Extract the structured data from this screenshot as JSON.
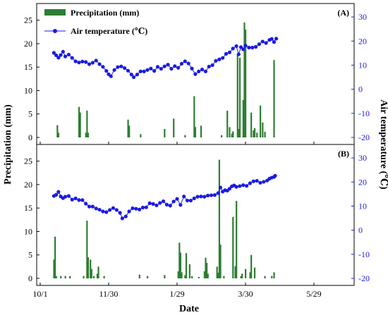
{
  "chart_data": [
    {
      "panel_label": "(A)",
      "type": "bar",
      "x_ticks": [
        "10/1",
        "11/30",
        "1/29",
        "3/30",
        "5/29"
      ],
      "xlabel": "Date",
      "ylabel": "Precipitation (mm)",
      "y2label": "Air temperature (℃)",
      "ylim": [
        0,
        26
      ],
      "y_ticks": [
        0,
        5,
        10,
        15,
        20,
        25
      ],
      "y2lim": [
        -20,
        35
      ],
      "y2_ticks": [
        -20,
        -10,
        0,
        10,
        20,
        30
      ],
      "legend": [
        "Precipitation (mm)",
        "Air temperature (℃)"
      ],
      "legend_position": "top-left",
      "colors": {
        "precipitation": "#2e7d32",
        "temperature": "#1a1ae6",
        "right_axis": "#1a1ae6"
      },
      "precipitation_bars": [
        [
          15,
          2.6
        ],
        [
          16,
          1.0
        ],
        [
          34,
          6.5
        ],
        [
          35,
          5.3
        ],
        [
          40,
          1.0
        ],
        [
          41,
          5.7
        ],
        [
          42,
          1.0
        ],
        [
          77,
          3.8
        ],
        [
          78,
          2.5
        ],
        [
          88,
          0.7
        ],
        [
          109,
          1.8
        ],
        [
          117,
          4.0
        ],
        [
          127,
          0.5
        ],
        [
          135,
          8.8
        ],
        [
          136,
          2.2
        ],
        [
          141,
          2.5
        ],
        [
          159,
          0.5
        ],
        [
          164,
          5.7
        ],
        [
          166,
          2.2
        ],
        [
          168,
          0.8
        ],
        [
          169,
          1.3
        ],
        [
          173,
          17.8
        ],
        [
          174,
          1.8
        ],
        [
          175,
          17.0
        ],
        [
          178,
          8.0
        ],
        [
          179,
          24.5
        ],
        [
          180,
          23.0
        ],
        [
          185,
          5.3
        ],
        [
          187,
          1.5
        ],
        [
          188,
          2.0
        ],
        [
          190,
          1.0
        ],
        [
          193,
          6.8
        ],
        [
          195,
          3.2
        ],
        [
          197,
          1.2
        ],
        [
          205,
          16.5
        ]
      ],
      "temperature_series": [
        [
          12,
          15.1
        ],
        [
          14,
          14.1
        ],
        [
          16,
          13.1
        ],
        [
          18,
          14.2
        ],
        [
          20,
          15.6
        ],
        [
          22,
          13.6
        ],
        [
          25,
          14.4
        ],
        [
          28,
          13.0
        ],
        [
          31,
          11.6
        ],
        [
          34,
          11.1
        ],
        [
          37,
          11.5
        ],
        [
          40,
          11.3
        ],
        [
          43,
          10.4
        ],
        [
          46,
          11.0
        ],
        [
          49,
          11.9
        ],
        [
          52,
          10.4
        ],
        [
          55,
          9.3
        ],
        [
          58,
          7.6
        ],
        [
          60,
          6.2
        ],
        [
          62,
          5.4
        ],
        [
          65,
          8.0
        ],
        [
          68,
          9.2
        ],
        [
          71,
          9.5
        ],
        [
          74,
          8.8
        ],
        [
          77,
          7.7
        ],
        [
          80,
          6.1
        ],
        [
          82,
          5.0
        ],
        [
          85,
          6.1
        ],
        [
          88,
          7.4
        ],
        [
          91,
          7.4
        ],
        [
          94,
          8.0
        ],
        [
          97,
          8.6
        ],
        [
          100,
          7.6
        ],
        [
          103,
          9.3
        ],
        [
          106,
          8.5
        ],
        [
          109,
          9.5
        ],
        [
          112,
          10.2
        ],
        [
          115,
          8.5
        ],
        [
          118,
          9.6
        ],
        [
          121,
          8.9
        ],
        [
          124,
          10.6
        ],
        [
          127,
          11.6
        ],
        [
          130,
          10.7
        ],
        [
          133,
          8.6
        ],
        [
          136,
          6.3
        ],
        [
          139,
          7.4
        ],
        [
          142,
          8.2
        ],
        [
          145,
          7.4
        ],
        [
          148,
          9.4
        ],
        [
          151,
          10.0
        ],
        [
          154,
          11.8
        ],
        [
          157,
          12.4
        ],
        [
          160,
          13.0
        ],
        [
          163,
          14.7
        ],
        [
          166,
          15.3
        ],
        [
          169,
          16.9
        ],
        [
          172,
          17.9
        ],
        [
          174,
          14.5
        ],
        [
          176,
          17.5
        ],
        [
          178,
          16.6
        ],
        [
          180,
          18.1
        ],
        [
          183,
          17.3
        ],
        [
          186,
          17.3
        ],
        [
          189,
          17.6
        ],
        [
          192,
          18.7
        ],
        [
          195,
          19.8
        ],
        [
          198,
          19.2
        ],
        [
          201,
          20.5
        ],
        [
          203,
          20.9
        ],
        [
          205,
          19.6
        ],
        [
          207,
          21.0
        ]
      ]
    },
    {
      "panel_label": "(B)",
      "type": "bar",
      "x_ticks": [
        "10/1",
        "11/30",
        "1/29",
        "3/30",
        "5/29"
      ],
      "xlabel": "Date",
      "ylabel": "Precipitation (mm)",
      "y2label": "Air temperature (℃)",
      "ylim": [
        0,
        26
      ],
      "y_ticks": [
        0,
        5,
        10,
        15,
        20,
        25
      ],
      "y2lim": [
        -20,
        35
      ],
      "y2_ticks": [
        -20,
        -10,
        0,
        10,
        20,
        30
      ],
      "colors": {
        "precipitation": "#2e7d32",
        "temperature": "#1a1ae6",
        "right_axis": "#1a1ae6"
      },
      "precipitation_bars": [
        [
          12,
          4.0
        ],
        [
          13,
          8.9
        ],
        [
          14,
          0.5
        ],
        [
          18,
          0.5
        ],
        [
          22,
          0.5
        ],
        [
          26,
          0.5
        ],
        [
          38,
          0.5
        ],
        [
          41,
          12.3
        ],
        [
          42,
          4.5
        ],
        [
          44,
          4.0
        ],
        [
          45,
          2.0
        ],
        [
          47,
          0.5
        ],
        [
          50,
          1.0
        ],
        [
          51,
          2.5
        ],
        [
          56,
          0.5
        ],
        [
          87,
          0.8
        ],
        [
          94,
          0.5
        ],
        [
          109,
          0.7
        ],
        [
          121,
          1.5
        ],
        [
          122,
          7.6
        ],
        [
          123,
          5.5
        ],
        [
          124,
          1.3
        ],
        [
          127,
          0.7
        ],
        [
          128,
          5.4
        ],
        [
          131,
          3.0
        ],
        [
          133,
          0.5
        ],
        [
          139,
          0.3
        ],
        [
          144,
          1.5
        ],
        [
          145,
          4.4
        ],
        [
          146,
          3.3
        ],
        [
          147,
          1.0
        ],
        [
          155,
          2.5
        ],
        [
          156,
          1.2
        ],
        [
          157,
          25.3
        ],
        [
          158,
          7.2
        ],
        [
          161,
          0.5
        ],
        [
          169,
          13.1
        ],
        [
          171,
          2.6
        ],
        [
          172,
          16.5
        ],
        [
          176,
          0.5
        ],
        [
          177,
          1.0
        ],
        [
          180,
          2.0
        ],
        [
          184,
          1.3
        ],
        [
          185,
          5.0
        ],
        [
          188,
          2.3
        ],
        [
          197,
          0.5
        ],
        [
          203,
          0.5
        ],
        [
          205,
          1.3
        ]
      ],
      "temperature_series": [
        [
          12,
          14.2
        ],
        [
          14,
          14.7
        ],
        [
          16,
          15.9
        ],
        [
          18,
          14.0
        ],
        [
          20,
          13.3
        ],
        [
          22,
          13.9
        ],
        [
          25,
          14.2
        ],
        [
          28,
          12.7
        ],
        [
          31,
          13.2
        ],
        [
          34,
          12.5
        ],
        [
          37,
          12.5
        ],
        [
          40,
          11.0
        ],
        [
          43,
          9.8
        ],
        [
          46,
          9.8
        ],
        [
          49,
          9.0
        ],
        [
          52,
          8.5
        ],
        [
          55,
          7.8
        ],
        [
          58,
          7.5
        ],
        [
          61,
          8.4
        ],
        [
          64,
          9.2
        ],
        [
          67,
          8.4
        ],
        [
          70,
          7.2
        ],
        [
          72,
          4.9
        ],
        [
          75,
          5.7
        ],
        [
          78,
          7.8
        ],
        [
          81,
          9.1
        ],
        [
          84,
          8.9
        ],
        [
          87,
          8.6
        ],
        [
          90,
          9.4
        ],
        [
          93,
          9.5
        ],
        [
          96,
          11.2
        ],
        [
          99,
          10.9
        ],
        [
          102,
          10.3
        ],
        [
          105,
          11.3
        ],
        [
          108,
          12.0
        ],
        [
          111,
          10.6
        ],
        [
          114,
          10.2
        ],
        [
          117,
          11.9
        ],
        [
          120,
          13.0
        ],
        [
          123,
          10.5
        ],
        [
          126,
          14.0
        ],
        [
          129,
          12.3
        ],
        [
          132,
          12.3
        ],
        [
          135,
          13.2
        ],
        [
          138,
          13.9
        ],
        [
          141,
          14.0
        ],
        [
          144,
          13.9
        ],
        [
          147,
          14.4
        ],
        [
          150,
          14.5
        ],
        [
          153,
          14.6
        ],
        [
          156,
          15.4
        ],
        [
          158,
          17.7
        ],
        [
          160,
          16.0
        ],
        [
          162,
          16.6
        ],
        [
          164,
          16.4
        ],
        [
          166,
          17.2
        ],
        [
          168,
          18.2
        ],
        [
          170,
          18.6
        ],
        [
          172,
          18.0
        ],
        [
          175,
          18.3
        ],
        [
          178,
          18.7
        ],
        [
          181,
          18.4
        ],
        [
          184,
          19.5
        ],
        [
          187,
          20.3
        ],
        [
          190,
          20.5
        ],
        [
          193,
          19.7
        ],
        [
          196,
          20.1
        ],
        [
          199,
          20.6
        ],
        [
          201,
          21.4
        ],
        [
          203,
          21.8
        ],
        [
          205,
          22.1
        ],
        [
          206,
          22.6
        ]
      ]
    }
  ]
}
